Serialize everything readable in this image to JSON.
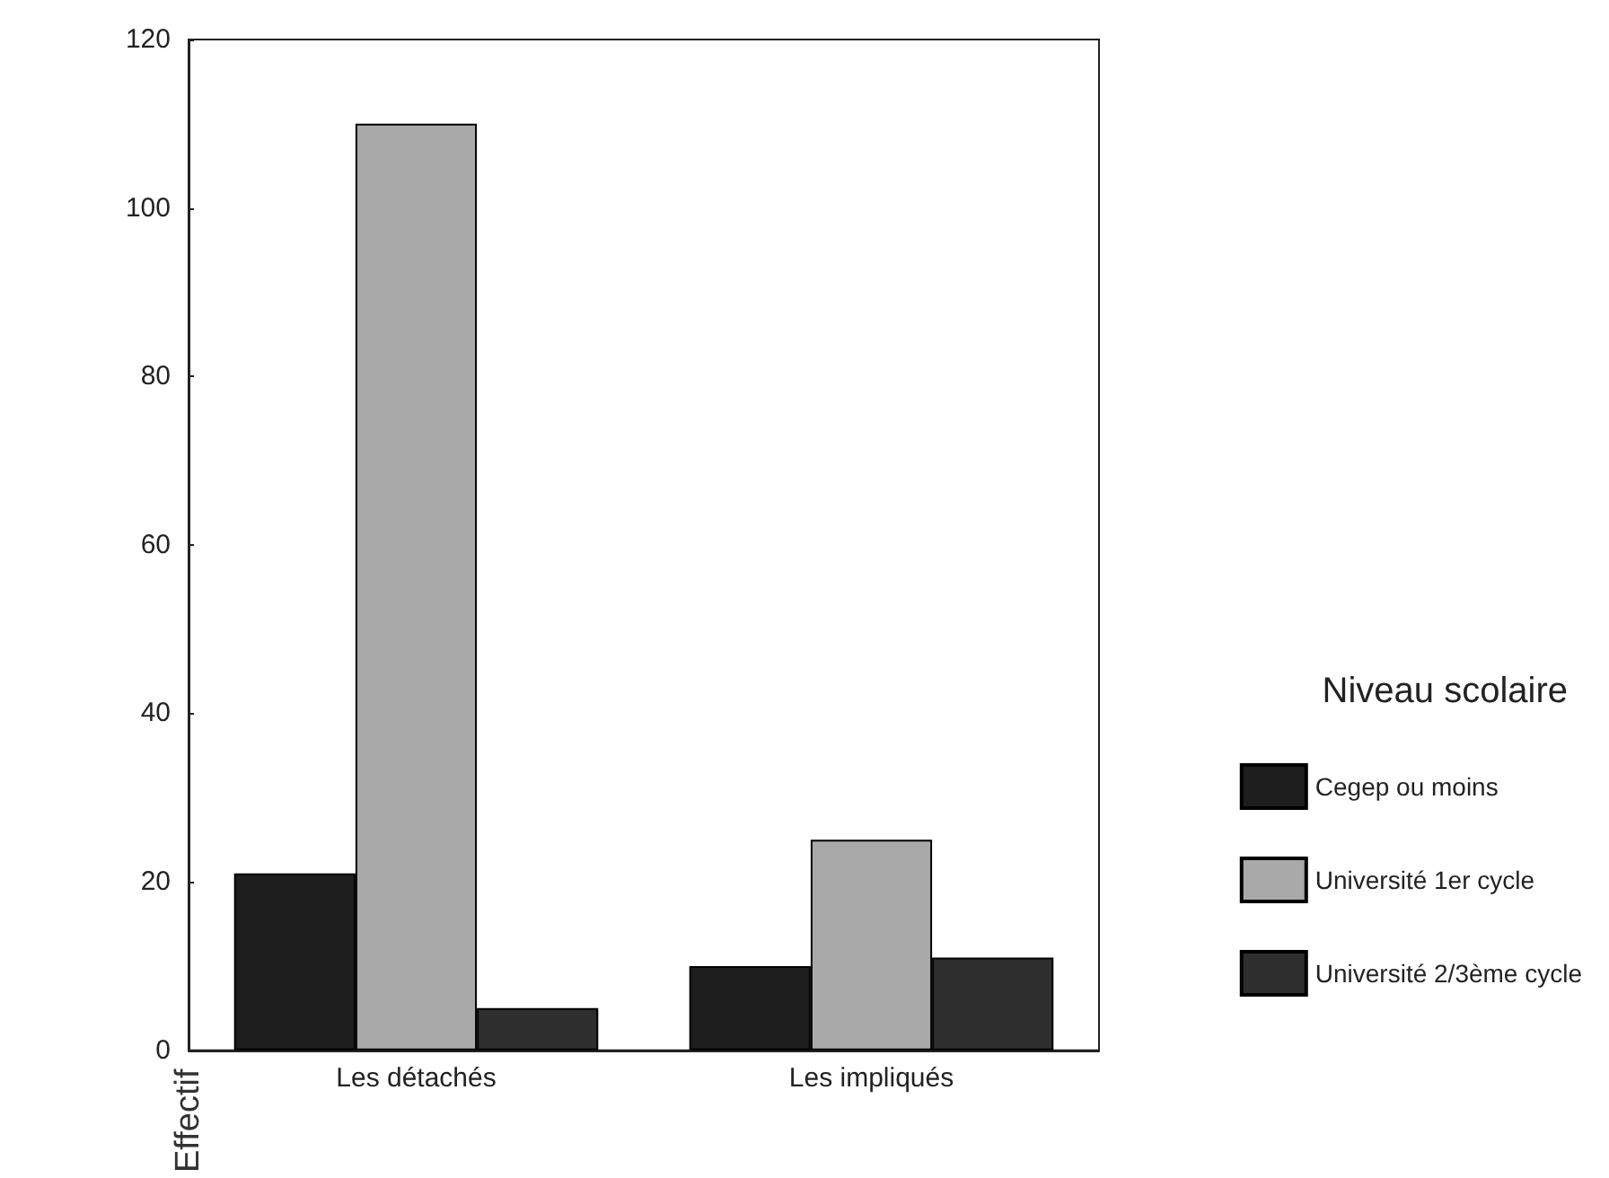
{
  "chart_data": {
    "type": "bar",
    "ylabel": "Effectif",
    "legend_title": "Niveau scolaire",
    "categories": [
      "Les détachés",
      "Les impliqués"
    ],
    "series": [
      {
        "name": "Cegep ou moins",
        "color": "#1e1e1e",
        "values": [
          21,
          10
        ]
      },
      {
        "name": "Université 1er cycle",
        "color": "#a9a9a9",
        "values": [
          110,
          25
        ]
      },
      {
        "name": "Université 2/3ème cycle",
        "color": "#2e2e2e",
        "values": [
          5,
          11
        ]
      }
    ],
    "ylim": [
      0,
      120
    ],
    "yticks": [
      0,
      20,
      40,
      60,
      80,
      100,
      120
    ],
    "grid": false,
    "legend": "right"
  }
}
